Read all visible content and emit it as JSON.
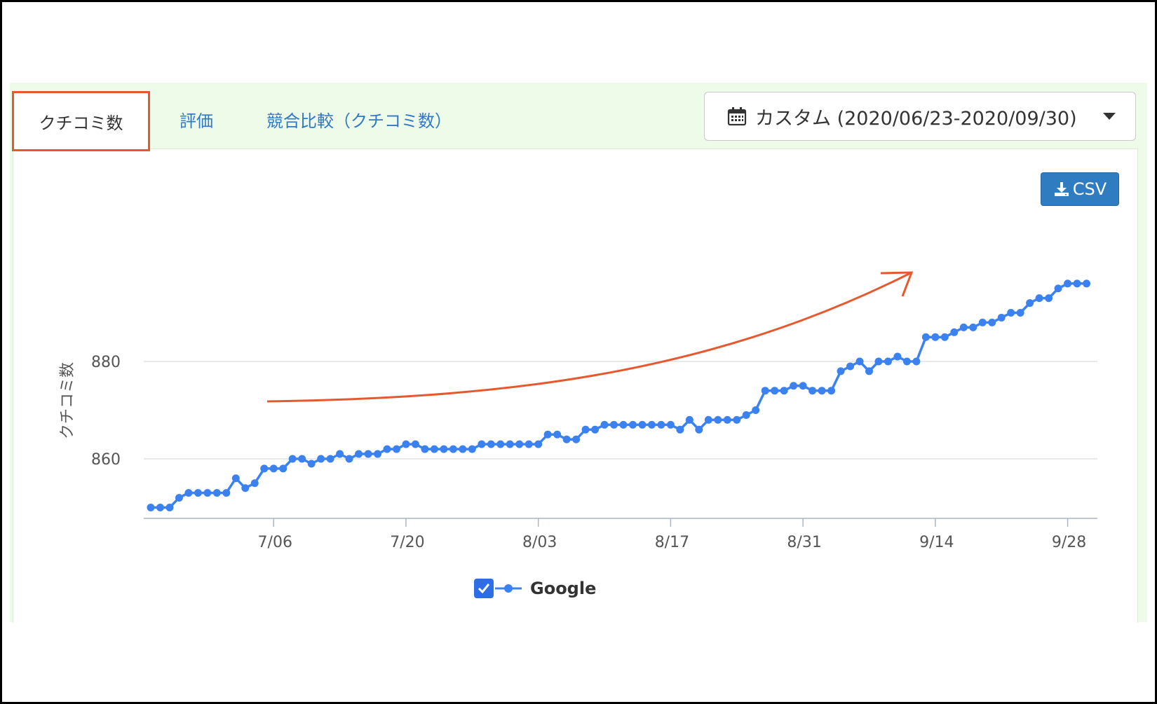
{
  "tabs": [
    {
      "label": "クチコミ数",
      "active": true
    },
    {
      "label": "評価",
      "active": false
    },
    {
      "label": "競合比較（クチコミ数）",
      "active": false
    }
  ],
  "date_picker": {
    "label": "カスタム (2020/06/23-2020/09/30)",
    "icon": "calendar-icon"
  },
  "csv_button": {
    "label": "CSV",
    "icon": "download-icon"
  },
  "colors": {
    "series": "#3b82f0",
    "highlight": "#e8582e",
    "accent_button": "#2f7cc1"
  },
  "chart_data": {
    "type": "line",
    "ylabel": "クチコミ数",
    "y_ticks": [
      860,
      880
    ],
    "ylim": [
      850,
      895
    ],
    "x_ticks": [
      "7/06",
      "7/20",
      "8/03",
      "8/17",
      "8/31",
      "9/14",
      "9/28"
    ],
    "x_tick_index": [
      13,
      27,
      41,
      55,
      69,
      83,
      97
    ],
    "grid": true,
    "legend_placement": "bottom",
    "series": [
      {
        "name": "Google",
        "color": "#3b82f0",
        "x_start": "2020/06/23",
        "values": [
          850,
          850,
          850,
          852,
          853,
          853,
          853,
          853,
          853,
          856,
          854,
          855,
          858,
          858,
          858,
          860,
          860,
          859,
          860,
          860,
          861,
          860,
          861,
          861,
          861,
          862,
          862,
          863,
          863,
          862,
          862,
          862,
          862,
          862,
          862,
          863,
          863,
          863,
          863,
          863,
          863,
          863,
          865,
          865,
          864,
          864,
          866,
          866,
          867,
          867,
          867,
          867,
          867,
          867,
          867,
          867,
          866,
          868,
          866,
          868,
          868,
          868,
          868,
          869,
          870,
          874,
          874,
          874,
          875,
          875,
          874,
          874,
          874,
          878,
          879,
          880,
          878,
          880,
          880,
          881,
          880,
          880,
          885,
          885,
          885,
          886,
          887,
          887,
          888,
          888,
          889,
          890,
          890,
          892,
          893,
          893,
          895,
          896,
          896,
          896
        ]
      }
    ]
  },
  "annotation": {
    "type": "trend-arrow",
    "color": "#e8582e"
  }
}
